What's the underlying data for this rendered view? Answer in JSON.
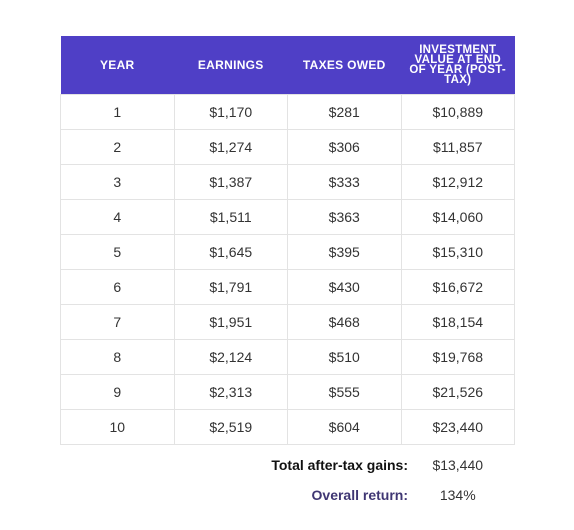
{
  "table": {
    "headers": [
      "YEAR",
      "EARNINGS",
      "TAXES OWED",
      "INVESTMENT VALUE AT END OF YEAR (POST-TAX)"
    ],
    "rows": [
      [
        "1",
        "$1,170",
        "$281",
        "$10,889"
      ],
      [
        "2",
        "$1,274",
        "$306",
        "$11,857"
      ],
      [
        "3",
        "$1,387",
        "$333",
        "$12,912"
      ],
      [
        "4",
        "$1,511",
        "$363",
        "$14,060"
      ],
      [
        "5",
        "$1,645",
        "$395",
        "$15,310"
      ],
      [
        "6",
        "$1,791",
        "$430",
        "$16,672"
      ],
      [
        "7",
        "$1,951",
        "$468",
        "$18,154"
      ],
      [
        "8",
        "$2,124",
        "$510",
        "$19,768"
      ],
      [
        "9",
        "$2,313",
        "$555",
        "$21,526"
      ],
      [
        "10",
        "$2,519",
        "$604",
        "$23,440"
      ]
    ]
  },
  "summary": {
    "gains_label": "Total after-tax gains:",
    "gains_value": "$13,440",
    "return_label": "Overall return:",
    "return_value": "134%"
  },
  "colors": {
    "header_bg": "#4f3fc6",
    "header_text": "#ffffff",
    "return_label": "#3f3673"
  }
}
